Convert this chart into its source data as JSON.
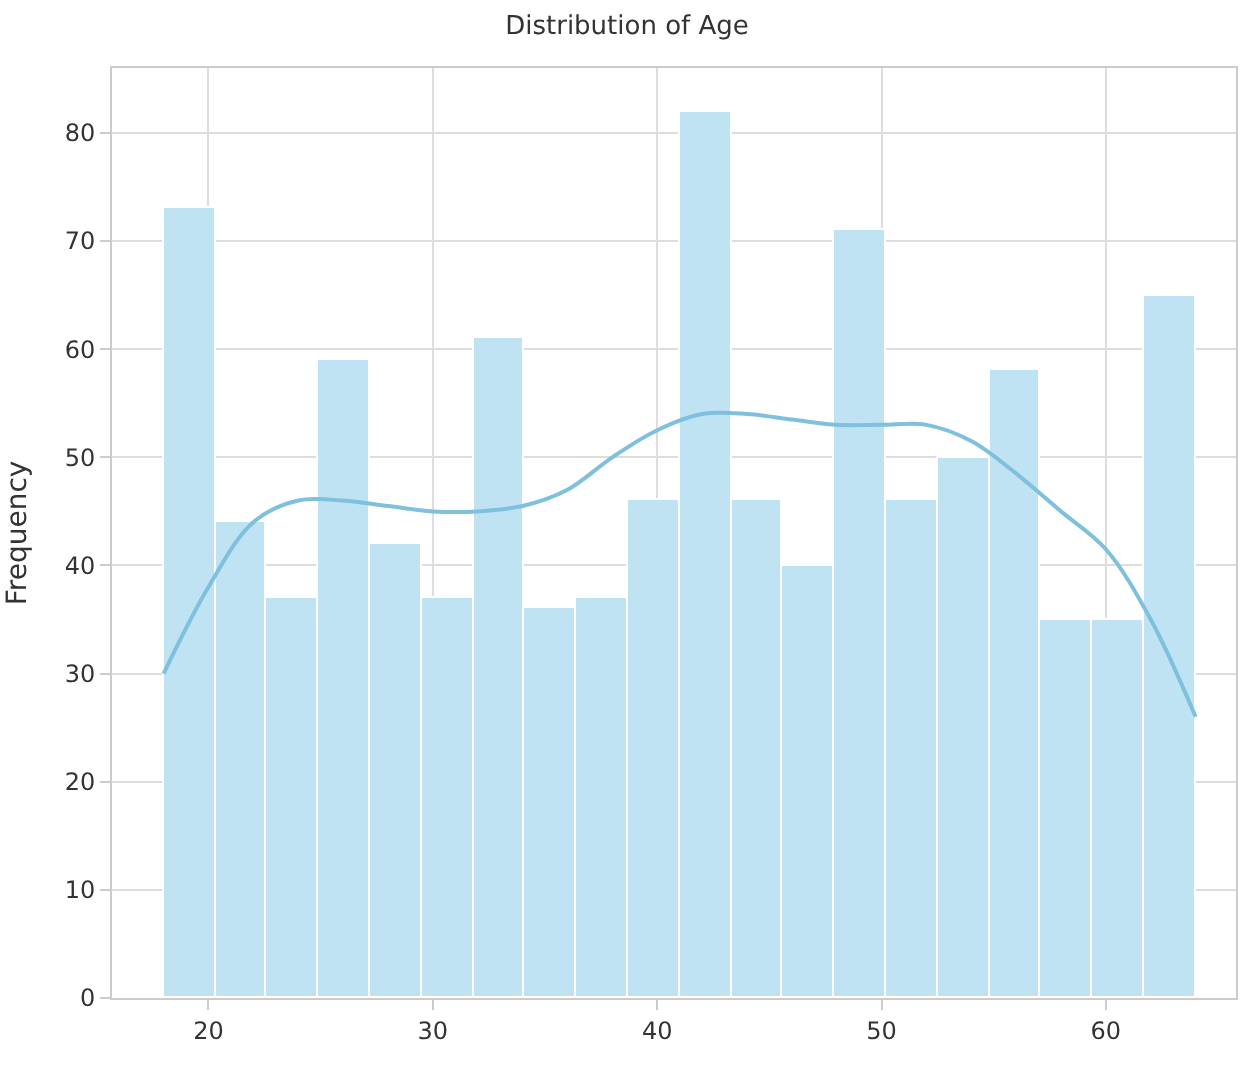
{
  "chart_data": {
    "type": "histogram",
    "title": "Distribution of Age",
    "ylabel": "Frequency",
    "bins": [
      18,
      20.3,
      22.6,
      24.9,
      27.2,
      29.5,
      31.8,
      34.1,
      36.4,
      38.7,
      41,
      43.3,
      45.6,
      47.9,
      50.2,
      52.5,
      54.8,
      57.1,
      59.4,
      61.7,
      64
    ],
    "values": [
      73,
      44,
      37,
      59,
      42,
      37,
      61,
      36,
      37,
      46,
      82,
      46,
      40,
      71,
      46,
      50,
      58,
      35,
      35,
      65
    ],
    "color": "#bfe3f2",
    "series": [
      {
        "type": "line",
        "color": "#7ec0de",
        "x": [
          18,
          20,
          22,
          24,
          26,
          28,
          30,
          32,
          34,
          36,
          38,
          40,
          42,
          44,
          46,
          48,
          50,
          52,
          54,
          56,
          58,
          60,
          62,
          64
        ],
        "values": [
          30,
          38,
          44,
          46,
          46,
          45.5,
          45,
          45,
          45.5,
          47,
          50,
          52.5,
          54,
          54,
          53.5,
          53,
          53,
          53,
          51.5,
          48.5,
          45,
          41.5,
          35,
          26
        ]
      }
    ],
    "xlim": [
      15.7,
      65.8
    ],
    "xticks": [
      20,
      30,
      40,
      50,
      60
    ],
    "ylim": [
      0,
      86
    ],
    "yticks": [
      0,
      10,
      20,
      30,
      40,
      50,
      60,
      70,
      80
    ],
    "grid": true
  }
}
